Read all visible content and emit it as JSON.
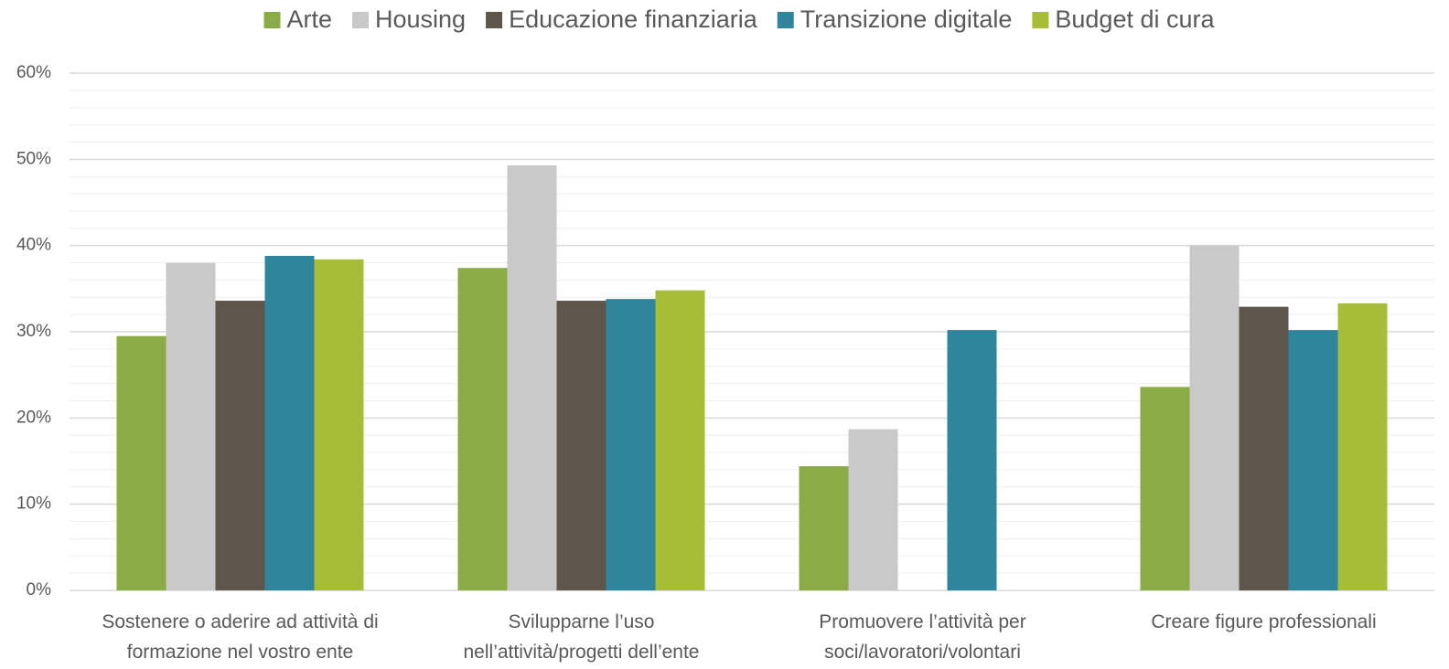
{
  "chart_data": {
    "type": "bar",
    "categories": [
      [
        "Sostenere o aderire ad attività di",
        "formazione nel vostro ente"
      ],
      [
        "Svilupparne l’uso",
        "nell’attività/progetti dell’ente"
      ],
      [
        "Promuovere l’attività per",
        "soci/lavoratori/volontari"
      ],
      [
        "Creare figure professionali"
      ]
    ],
    "series": [
      {
        "name": "Arte",
        "color": "#8aab45",
        "values": [
          29.5,
          37.4,
          14.4,
          23.6
        ]
      },
      {
        "name": "Housing",
        "color": "#c9c9c9",
        "values": [
          38,
          49.3,
          18.7,
          40
        ]
      },
      {
        "name": "Educazione finanziaria",
        "color": "#5e564b",
        "values": [
          33.6,
          33.6,
          null,
          32.9
        ]
      },
      {
        "name": "Transizione digitale",
        "color": "#2e859c",
        "values": [
          38.8,
          33.8,
          30.2,
          30.2
        ]
      },
      {
        "name": "Budget di cura",
        "color": "#a7bd37",
        "values": [
          38.4,
          34.8,
          null,
          33.3
        ]
      }
    ],
    "ylim": [
      0,
      60
    ],
    "yticks": [
      {
        "value": 0,
        "label": "0%"
      },
      {
        "value": 10,
        "label": "10%"
      },
      {
        "value": 20,
        "label": "20%"
      },
      {
        "value": 30,
        "label": "30%"
      },
      {
        "value": 40,
        "label": "40%"
      },
      {
        "value": 50,
        "label": "50%"
      },
      {
        "value": 60,
        "label": "60%"
      }
    ],
    "y_minor_ticks": [
      2,
      4,
      6,
      8,
      12,
      14,
      16,
      18,
      22,
      24,
      26,
      28,
      32,
      34,
      36,
      38,
      42,
      44,
      46,
      48,
      52,
      54,
      56,
      58
    ],
    "grid": true,
    "legend": "top"
  }
}
